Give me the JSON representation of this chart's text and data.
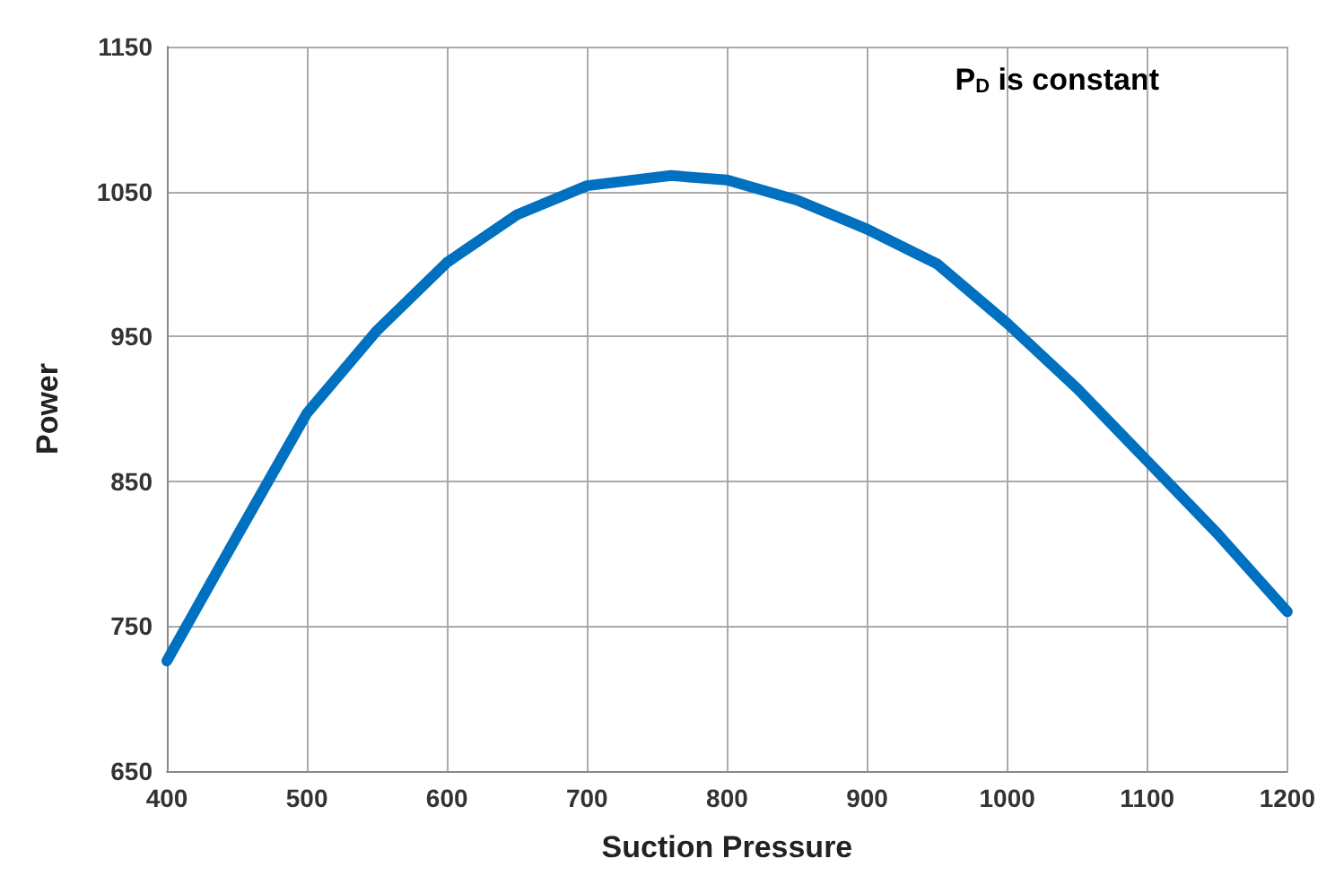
{
  "chart_data": {
    "type": "line",
    "xlabel": "Suction Pressure",
    "ylabel": "Power",
    "x": [
      400,
      450,
      500,
      550,
      600,
      650,
      700,
      760,
      800,
      850,
      900,
      950,
      1000,
      1050,
      1100,
      1150,
      1200
    ],
    "series": [
      {
        "color": "#0070c0",
        "values": [
          726,
          812,
          897,
          954,
          1001,
          1034,
          1054,
          1061,
          1058,
          1044,
          1024,
          1000,
          959,
          914,
          864,
          814,
          760
        ]
      }
    ],
    "xlim": [
      400,
      1200
    ],
    "xticks": [
      400,
      500,
      600,
      700,
      800,
      900,
      1000,
      1100,
      1200
    ],
    "ylim": [
      650,
      1150
    ],
    "yticks": [
      650,
      750,
      850,
      950,
      1050,
      1150
    ],
    "grid": true,
    "marker": "none",
    "line_style": "solid",
    "annotations": [
      "P$_{D}$ is constant"
    ]
  }
}
